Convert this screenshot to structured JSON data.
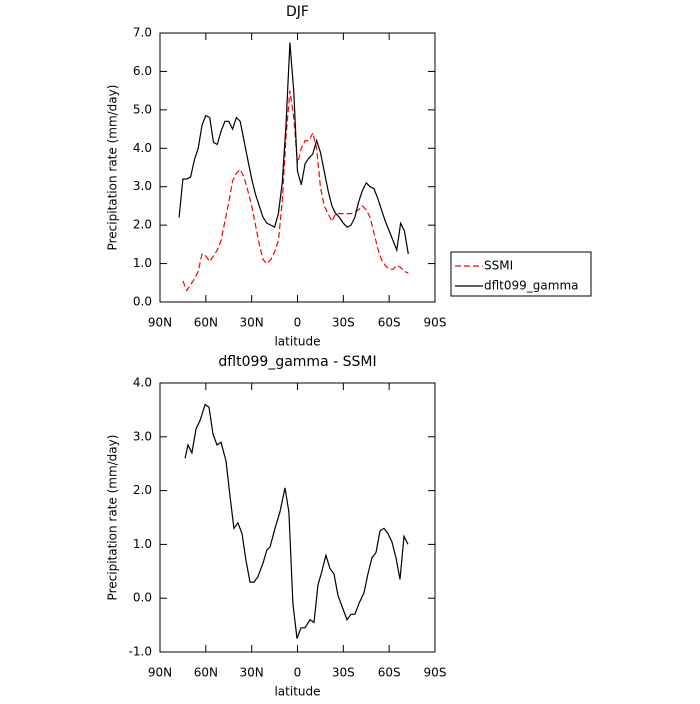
{
  "chart_data": [
    {
      "type": "line",
      "title": "DJF",
      "xlabel": "latitude",
      "ylabel": "Precipitation rate (mm/day)",
      "x": [
        77.5,
        75,
        72.5,
        70,
        67.5,
        65,
        62.5,
        60,
        57.5,
        55,
        52.5,
        50,
        47.5,
        45,
        42.5,
        40,
        37.5,
        35,
        32.5,
        30,
        27.5,
        25,
        22.5,
        20,
        17.5,
        15,
        12.5,
        10,
        7.5,
        5,
        2.5,
        0,
        -2.5,
        -5,
        -7.5,
        -10,
        -12.5,
        -15,
        -17.5,
        -20,
        -22.5,
        -25,
        -27.5,
        -30,
        -32.5,
        -35,
        -37.5,
        -40,
        -42.5,
        -45,
        -47.5,
        -50,
        -52.5,
        -55,
        -57.5,
        -60,
        -62.5,
        -65,
        -67.5,
        -70,
        -72.5
      ],
      "series": [
        {
          "name": "SSMI",
          "color": "#ff0000",
          "line_style": "dashed",
          "values": [
            null,
            0.55,
            0.3,
            0.45,
            0.6,
            0.8,
            1.25,
            1.2,
            1.05,
            1.2,
            1.35,
            1.6,
            2.1,
            2.6,
            3.15,
            3.35,
            3.45,
            3.25,
            2.9,
            2.5,
            2.0,
            1.5,
            1.1,
            1.0,
            1.1,
            1.3,
            1.6,
            2.6,
            4.3,
            5.5,
            4.8,
            3.6,
            4.0,
            4.2,
            4.2,
            4.4,
            4.0,
            3.0,
            2.5,
            2.3,
            2.1,
            2.3,
            2.3,
            2.3,
            2.3,
            2.3,
            2.35,
            2.4,
            2.5,
            2.4,
            2.2,
            1.8,
            1.4,
            1.1,
            0.95,
            0.85,
            0.85,
            0.95,
            0.9,
            0.8,
            0.75
          ]
        },
        {
          "name": "dflt099_gamma",
          "color": "#000000",
          "line_style": "solid",
          "values": [
            2.2,
            3.2,
            3.2,
            3.25,
            3.7,
            4.0,
            4.6,
            4.85,
            4.8,
            4.15,
            4.1,
            4.45,
            4.7,
            4.7,
            4.5,
            4.8,
            4.7,
            4.2,
            3.7,
            3.2,
            2.8,
            2.5,
            2.2,
            2.05,
            2.0,
            1.95,
            2.3,
            3.1,
            4.6,
            6.75,
            5.5,
            3.4,
            3.05,
            3.6,
            3.75,
            3.85,
            4.2,
            3.9,
            3.4,
            2.9,
            2.5,
            2.3,
            2.2,
            2.05,
            1.95,
            2.0,
            2.2,
            2.6,
            2.9,
            3.1,
            3.0,
            2.95,
            2.7,
            2.4,
            2.1,
            1.85,
            1.6,
            1.35,
            2.05,
            1.85,
            1.25
          ]
        }
      ],
      "xlim": [
        90,
        -90
      ],
      "xticks": [
        {
          "value": 90,
          "label": "90N"
        },
        {
          "value": 60,
          "label": "60N"
        },
        {
          "value": 30,
          "label": "30N"
        },
        0,
        {
          "value": -30,
          "label": "30S"
        },
        {
          "value": -60,
          "label": "60S"
        },
        {
          "value": -90,
          "label": "90S"
        }
      ],
      "ylim": [
        0,
        7
      ],
      "yticks": [
        {
          "value": 0,
          "label": "0.0"
        },
        {
          "value": 1,
          "label": "1.0"
        },
        {
          "value": 2,
          "label": "2.0"
        },
        {
          "value": 3,
          "label": "3.0"
        },
        {
          "value": 4,
          "label": "4.0"
        },
        {
          "value": 5,
          "label": "5.0"
        },
        {
          "value": 6,
          "label": "6.0"
        },
        {
          "value": 7,
          "label": "7.0"
        }
      ],
      "legend": "right"
    },
    {
      "type": "line",
      "title": "dflt099_gamma - SSMI",
      "xlabel": "latitude",
      "ylabel": "Precipitation rate (mm/day)",
      "x": [
        73.6,
        71.7,
        69.1,
        66.4,
        63.8,
        60.5,
        57.9,
        55.3,
        52.7,
        50.1,
        46.8,
        44.2,
        41.6,
        39.0,
        36.3,
        33.7,
        31.1,
        28.5,
        25.9,
        22.6,
        20.0,
        18.0,
        14.7,
        11.5,
        8.2,
        5.6,
        3.0,
        0.3,
        -2.3,
        -4.9,
        -8.2,
        -10.8,
        -13.4,
        -16.0,
        -18.6,
        -21.3,
        -23.9,
        -26.5,
        -29.8,
        -32.4,
        -35.0,
        -37.6,
        -40.2,
        -43.5,
        -46.1,
        -48.7,
        -51.4,
        -54.0,
        -56.6,
        -59.2,
        -61.8,
        -64.5,
        -67.1,
        -69.7,
        -72.3
      ],
      "values": [
        2.6,
        2.85,
        2.7,
        3.15,
        3.3,
        3.6,
        3.55,
        3.05,
        2.85,
        2.9,
        2.55,
        1.9,
        1.3,
        1.4,
        1.2,
        0.7,
        0.3,
        0.3,
        0.4,
        0.65,
        0.9,
        0.95,
        1.3,
        1.6,
        2.05,
        1.6,
        -0.1,
        -0.75,
        -0.55,
        -0.55,
        -0.4,
        -0.45,
        0.25,
        0.5,
        0.8,
        0.55,
        0.45,
        0.05,
        -0.2,
        -0.4,
        -0.3,
        -0.3,
        -0.1,
        0.1,
        0.45,
        0.75,
        0.85,
        1.25,
        1.3,
        1.2,
        1.05,
        0.75,
        0.35,
        1.15,
        1.0
      ],
      "color": "#000000",
      "xlim": [
        90,
        -90
      ],
      "xticks": [
        {
          "value": 90,
          "label": "90N"
        },
        {
          "value": 60,
          "label": "60N"
        },
        {
          "value": 30,
          "label": "30N"
        },
        0,
        {
          "value": -30,
          "label": "30S"
        },
        {
          "value": -60,
          "label": "60S"
        },
        {
          "value": -90,
          "label": "90S"
        }
      ],
      "ylim": [
        -1,
        4
      ],
      "yticks": [
        {
          "value": -1,
          "label": "-1.0"
        },
        {
          "value": 0,
          "label": "0.0"
        },
        {
          "value": 1,
          "label": "1.0"
        },
        {
          "value": 2,
          "label": "2.0"
        },
        {
          "value": 3,
          "label": "3.0"
        },
        {
          "value": 4,
          "label": "4.0"
        }
      ]
    }
  ]
}
